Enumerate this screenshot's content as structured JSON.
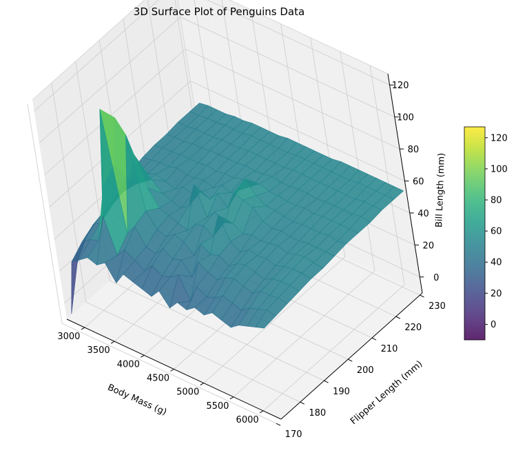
{
  "chart_data": {
    "type": "surface3d",
    "title": "3D Surface Plot of Penguins Data",
    "xlabel": "Body Mass (g)",
    "ylabel": "Flipper Length (mm)",
    "zlabel": "Bill Length (mm)",
    "x_ticks": [
      3000,
      3500,
      4000,
      4500,
      5000,
      5500,
      6000
    ],
    "y_ticks": [
      170,
      180,
      190,
      200,
      210,
      220,
      230
    ],
    "z_ticks": [
      0,
      20,
      40,
      60,
      80,
      100,
      120
    ],
    "colorbar_ticks": [
      0,
      20,
      40,
      60,
      80,
      100,
      120
    ],
    "xlim": [
      2700,
      6300
    ],
    "ylim": [
      172,
      231
    ],
    "zlim": [
      -10,
      127
    ],
    "colormap": "viridis",
    "grid": true,
    "surface_rows": [
      {
        "y": 172,
        "z": [
          -5,
          30,
          34,
          38,
          36,
          40,
          30,
          38,
          36,
          34,
          32,
          38,
          30,
          36,
          34,
          38,
          36,
          40,
          38,
          36,
          40,
          42,
          44,
          46
        ]
      },
      {
        "y": 177,
        "z": [
          20,
          36,
          40,
          42,
          60,
          38,
          44,
          40,
          36,
          42,
          38,
          40,
          44,
          30,
          42,
          38,
          40,
          44,
          42,
          40,
          44,
          46,
          48,
          47
        ]
      },
      {
        "y": 182,
        "z": [
          30,
          40,
          44,
          70,
          120,
          45,
          52,
          42,
          40,
          46,
          42,
          44,
          36,
          48,
          44,
          42,
          46,
          48,
          46,
          44,
          48,
          48,
          49,
          48
        ]
      },
      {
        "y": 187,
        "z": [
          34,
          42,
          48,
          76,
          108,
          100,
          55,
          46,
          44,
          48,
          46,
          40,
          50,
          46,
          48,
          44,
          48,
          50,
          48,
          46,
          49,
          50,
          50,
          49
        ]
      },
      {
        "y": 192,
        "z": [
          36,
          44,
          50,
          60,
          78,
          60,
          50,
          48,
          46,
          44,
          50,
          52,
          48,
          64,
          50,
          46,
          50,
          49,
          50,
          48,
          50,
          51,
          51,
          50
        ]
      },
      {
        "y": 197,
        "z": [
          40,
          46,
          48,
          52,
          56,
          50,
          48,
          46,
          50,
          66,
          48,
          54,
          50,
          52,
          48,
          50,
          49,
          50,
          51,
          49,
          51,
          52,
          51,
          50
        ]
      },
      {
        "y": 202,
        "z": [
          44,
          46,
          48,
          50,
          48,
          46,
          50,
          48,
          52,
          50,
          56,
          50,
          62,
          60,
          58,
          52,
          50,
          51,
          50,
          50,
          51,
          51,
          51,
          51
        ]
      },
      {
        "y": 207,
        "z": [
          46,
          47,
          48,
          48,
          50,
          48,
          49,
          50,
          48,
          52,
          50,
          54,
          64,
          56,
          52,
          52,
          51,
          50,
          51,
          51,
          51,
          52,
          51,
          52
        ]
      },
      {
        "y": 212,
        "z": [
          47,
          48,
          48,
          49,
          49,
          49,
          50,
          49,
          50,
          50,
          52,
          50,
          54,
          52,
          52,
          51,
          51,
          52,
          51,
          52,
          52,
          52,
          52,
          52
        ]
      },
      {
        "y": 217,
        "z": [
          47,
          48,
          48,
          49,
          49,
          50,
          50,
          50,
          50,
          51,
          50,
          51,
          52,
          51,
          51,
          52,
          52,
          51,
          52,
          52,
          52,
          52,
          53,
          52
        ]
      },
      {
        "y": 222,
        "z": [
          48,
          48,
          49,
          49,
          49,
          50,
          50,
          50,
          51,
          51,
          51,
          51,
          51,
          52,
          52,
          52,
          52,
          52,
          52,
          52,
          52,
          53,
          53,
          53
        ]
      },
      {
        "y": 227,
        "z": [
          48,
          48,
          49,
          49,
          50,
          50,
          50,
          51,
          51,
          51,
          51,
          51,
          52,
          52,
          52,
          52,
          52,
          52,
          52,
          53,
          53,
          53,
          53,
          53
        ]
      },
      {
        "y": 231,
        "z": [
          48,
          49,
          49,
          49,
          50,
          50,
          51,
          51,
          51,
          51,
          52,
          52,
          52,
          52,
          52,
          52,
          53,
          53,
          53,
          53,
          53,
          53,
          53,
          53
        ]
      }
    ]
  }
}
